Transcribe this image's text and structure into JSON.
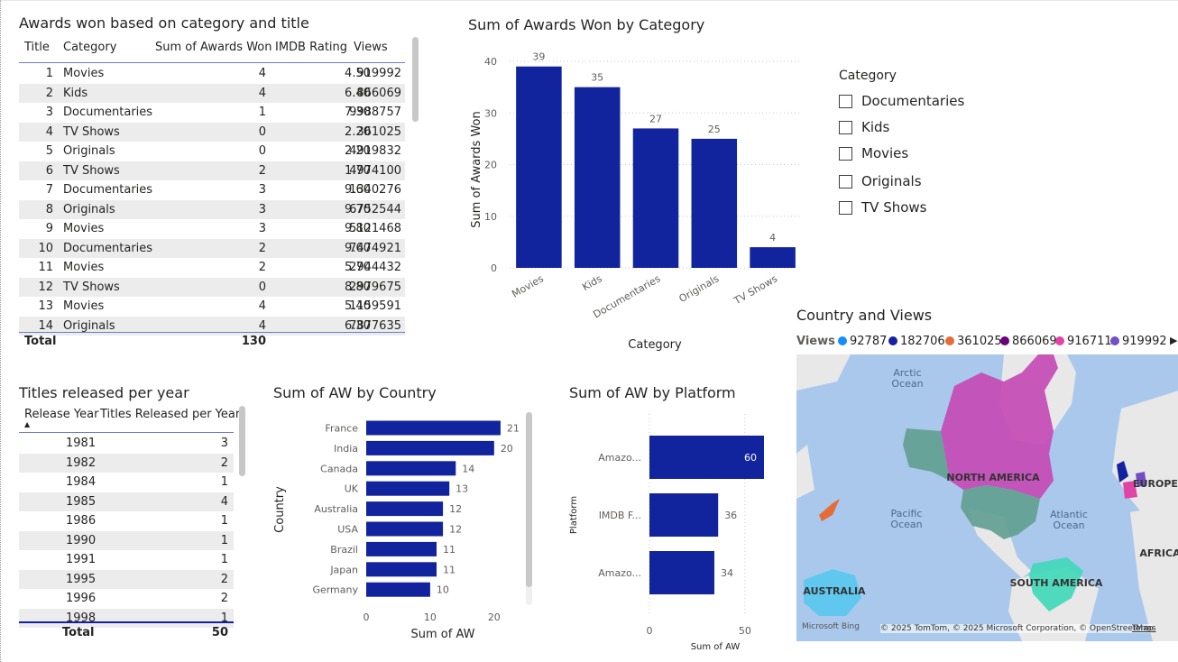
{
  "awards_table": {
    "title": "Awards won based on category and title",
    "columns": [
      "Title",
      "Category",
      "Sum of Awards Won",
      "IMDB Rating",
      "Views"
    ],
    "rows": [
      [
        "1",
        "Movies",
        "4",
        "4.50",
        "919992"
      ],
      [
        "2",
        "Kids",
        "4",
        "6.40",
        "866069"
      ],
      [
        "3",
        "Documentaries",
        "1",
        "7.30",
        "9988757"
      ],
      [
        "4",
        "TV Shows",
        "0",
        "2.20",
        "361025"
      ],
      [
        "5",
        "Originals",
        "0",
        "2.20",
        "4919832"
      ],
      [
        "6",
        "TV Shows",
        "2",
        "1.70",
        "4974100"
      ],
      [
        "7",
        "Documentaries",
        "3",
        "9.60",
        "1340276"
      ],
      [
        "8",
        "Originals",
        "3",
        "9.70",
        "6752544"
      ],
      [
        "9",
        "Movies",
        "3",
        "9.80",
        "5121468"
      ],
      [
        "10",
        "Documentaries",
        "2",
        "9.60",
        "7474921"
      ],
      [
        "11",
        "Movies",
        "2",
        "5.70",
        "2944432"
      ],
      [
        "12",
        "TV Shows",
        "0",
        "8.80",
        "2979675"
      ],
      [
        "13",
        "Movies",
        "4",
        "5.40",
        "1159591"
      ],
      [
        "14",
        "Originals",
        "4",
        "6.30",
        "7877635"
      ]
    ],
    "total_label": "Total",
    "total_value": "130"
  },
  "years_table": {
    "title": "Titles released per year",
    "columns": [
      "Release Year",
      "Titles Released per Year"
    ],
    "sort_indicator": "▲",
    "rows": [
      [
        "1981",
        "3"
      ],
      [
        "1982",
        "2"
      ],
      [
        "1984",
        "1"
      ],
      [
        "1985",
        "4"
      ],
      [
        "1986",
        "1"
      ],
      [
        "1990",
        "1"
      ],
      [
        "1991",
        "1"
      ],
      [
        "1995",
        "2"
      ],
      [
        "1996",
        "2"
      ],
      [
        "1998",
        "1"
      ]
    ],
    "total_label": "Total",
    "total_value": "50"
  },
  "category_slicer": {
    "title": "Category",
    "items": [
      "Documentaries",
      "Kids",
      "Movies",
      "Originals",
      "TV Shows"
    ]
  },
  "map_visual": {
    "title": "Country and Views",
    "legend_title": "Views",
    "legend": [
      {
        "label": "92787",
        "color": "#118dff"
      },
      {
        "label": "182706",
        "color": "#12239e"
      },
      {
        "label": "361025",
        "color": "#e66c37"
      },
      {
        "label": "866069",
        "color": "#6b007b"
      },
      {
        "label": "916711",
        "color": "#e044a7"
      },
      {
        "label": "919992",
        "color": "#744ec2"
      }
    ],
    "legend_more": "▶",
    "labels": {
      "arctic": "Arctic\nOcean",
      "pacific": "Pacific\nOcean",
      "atlantic": "Atlantic\nOcean",
      "north_america": "NORTH AMERICA",
      "south_america": "SOUTH AMERICA",
      "europe": "EUROPE",
      "africa": "AFRICA",
      "australia": "AUSTRALIA"
    },
    "attribution": "© 2025 TomTom, © 2025 Microsoft Corporation, © OpenStreetMap",
    "terms": "Terms",
    "bing": "Microsoft Bing"
  },
  "colors": {
    "bar": "#12239e",
    "header_line": "#6f79c9",
    "alt_row": "#ececec"
  },
  "chart_data": [
    {
      "id": "category",
      "type": "bar",
      "title": "Sum of Awards Won by Category",
      "xlabel": "Category",
      "ylabel": "Sum of Awards Won",
      "categories": [
        "Movies",
        "Kids",
        "Documentaries",
        "Originals",
        "TV Shows"
      ],
      "values": [
        39,
        35,
        27,
        25,
        4
      ],
      "ylim": [
        0,
        40
      ],
      "yticks": [
        0,
        10,
        20,
        30,
        40
      ],
      "grid": true
    },
    {
      "id": "country",
      "type": "bar",
      "orientation": "horizontal",
      "title": "Sum of AW by Country",
      "xlabel": "Sum of AW",
      "ylabel": "Country",
      "categories": [
        "France",
        "India",
        "Canada",
        "UK",
        "Australia",
        "USA",
        "Brazil",
        "Japan",
        "Germany"
      ],
      "values": [
        21,
        20,
        14,
        13,
        12,
        12,
        11,
        11,
        10
      ],
      "xlim": [
        0,
        22
      ],
      "xticks": [
        0,
        10,
        20
      ]
    },
    {
      "id": "platform",
      "type": "bar",
      "orientation": "horizontal",
      "title": "Sum of AW by Platform",
      "xlabel": "Sum of AW",
      "ylabel": "Platform",
      "categories": [
        "Amazo...",
        "IMDB F...",
        "Amazo..."
      ],
      "values": [
        60,
        36,
        34
      ],
      "xlim": [
        0,
        60
      ],
      "xticks": [
        0,
        50
      ],
      "grid": true
    }
  ]
}
